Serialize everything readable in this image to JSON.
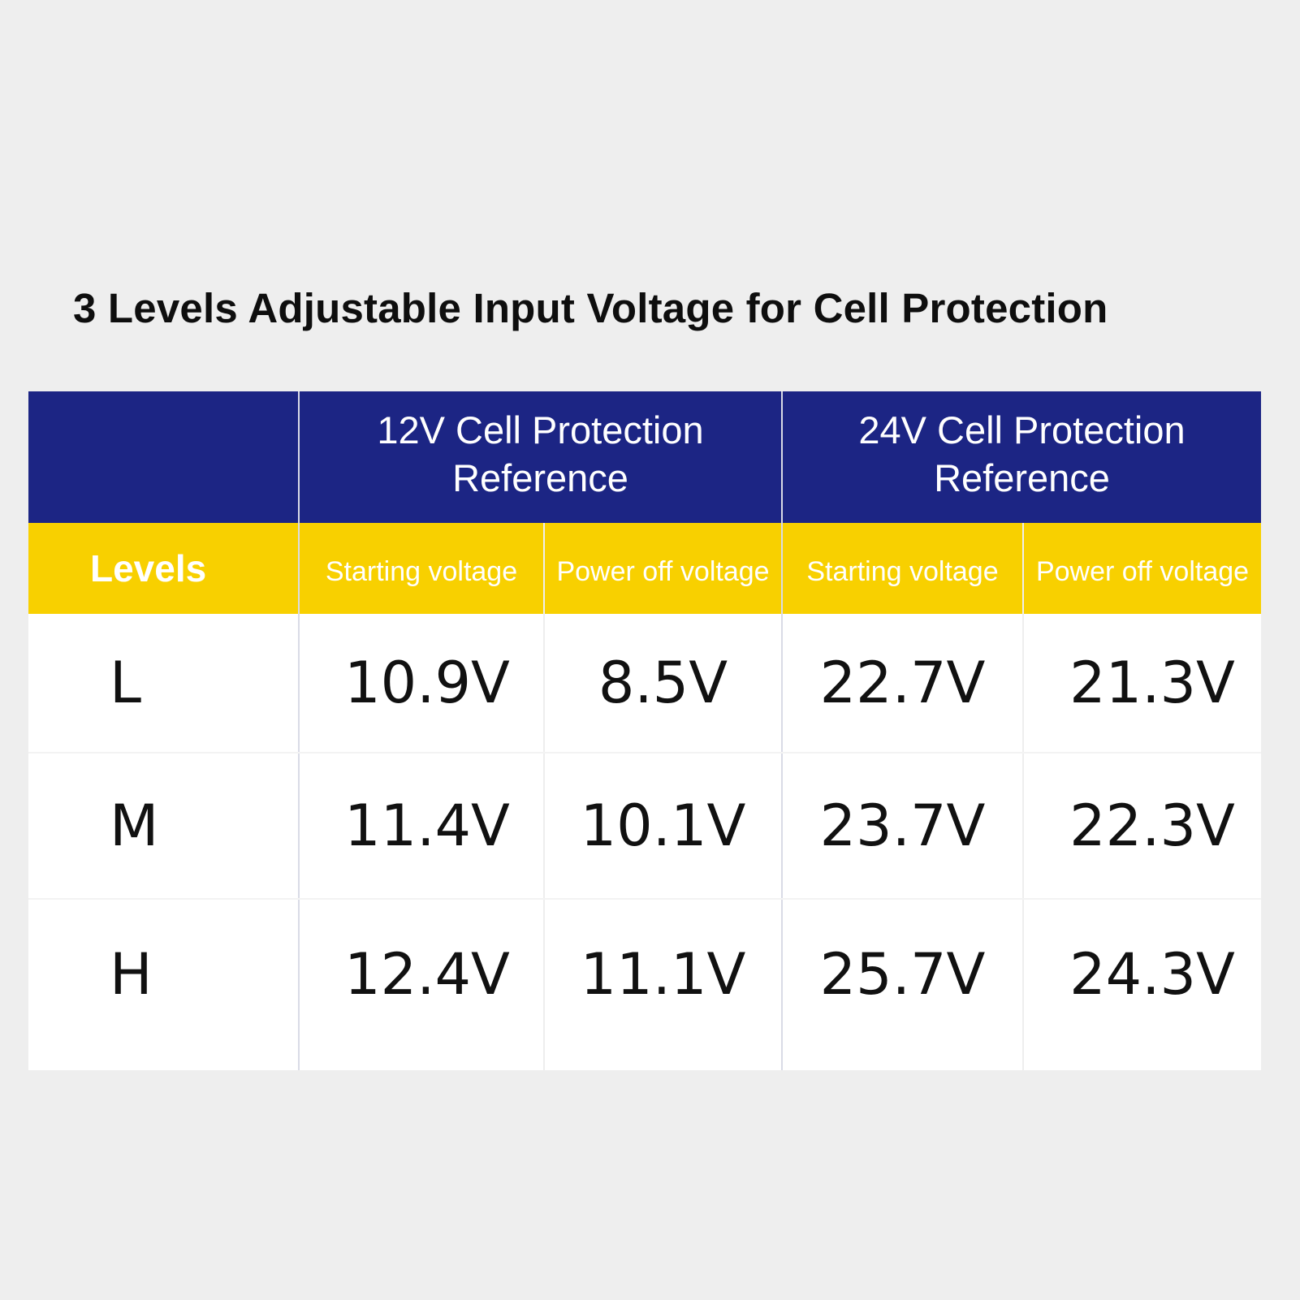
{
  "title": "3 Levels Adjustable Input Voltage for Cell Protection",
  "table": {
    "group_headers": [
      "12V Cell Protection\nReference",
      "24V Cell Protection\nReference"
    ],
    "levels_header": "Levels",
    "sub_headers": [
      "Starting voltage",
      "Power off voltage",
      "Starting voltage",
      "Power off voltage"
    ],
    "rows": [
      {
        "level": "L",
        "values": [
          "10.9V",
          "8.5V",
          "22.7V",
          "21.3V"
        ]
      },
      {
        "level": "M",
        "values": [
          "11.4V",
          "10.1V",
          "23.7V",
          "22.3V"
        ]
      },
      {
        "level": "H",
        "values": [
          "12.4V",
          "11.1V",
          "25.7V",
          "24.3V"
        ]
      }
    ]
  },
  "colors": {
    "header_blue": "#1c2584",
    "header_yellow": "#f8d000",
    "background": "#eeeeee"
  }
}
